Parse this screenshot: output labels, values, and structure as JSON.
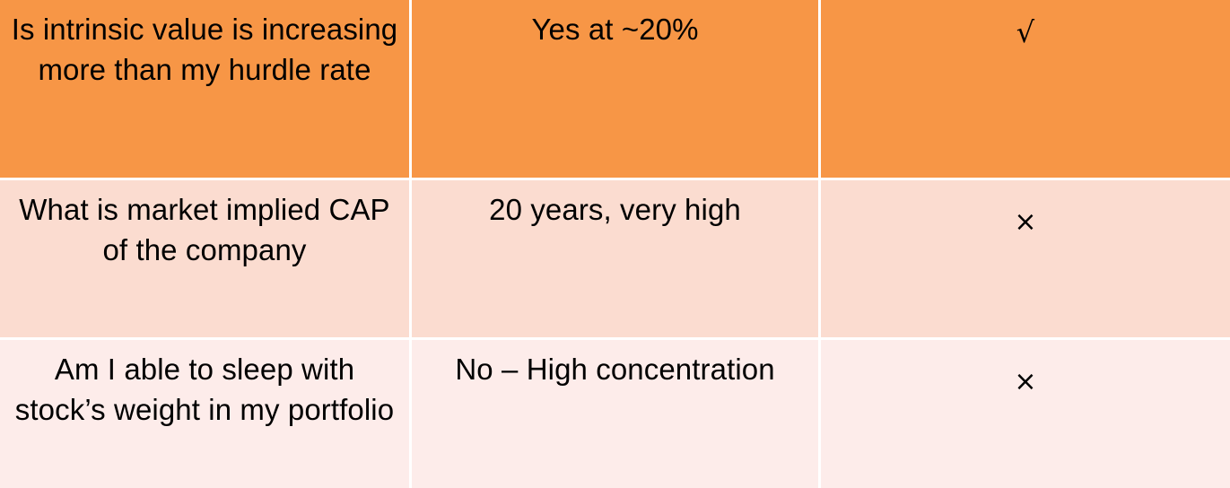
{
  "rows": [
    {
      "question": "Is intrinsic value is increasing more than my hurdle rate",
      "answer": "Yes at ~20%",
      "mark": "√",
      "mark_icon": "check-mark-icon"
    },
    {
      "question": "What is market implied CAP of the company",
      "answer": "20 years, very high",
      "mark": "×",
      "mark_icon": "cross-mark-icon"
    },
    {
      "question": "Am I able to sleep with stock’s weight in my portfolio",
      "answer": "No – High concentration",
      "mark": "×",
      "mark_icon": "cross-mark-icon"
    }
  ],
  "colors": {
    "row1": "#f79646",
    "row2": "#fbdcd0",
    "row3": "#fdecea",
    "divider": "#ffffff"
  }
}
